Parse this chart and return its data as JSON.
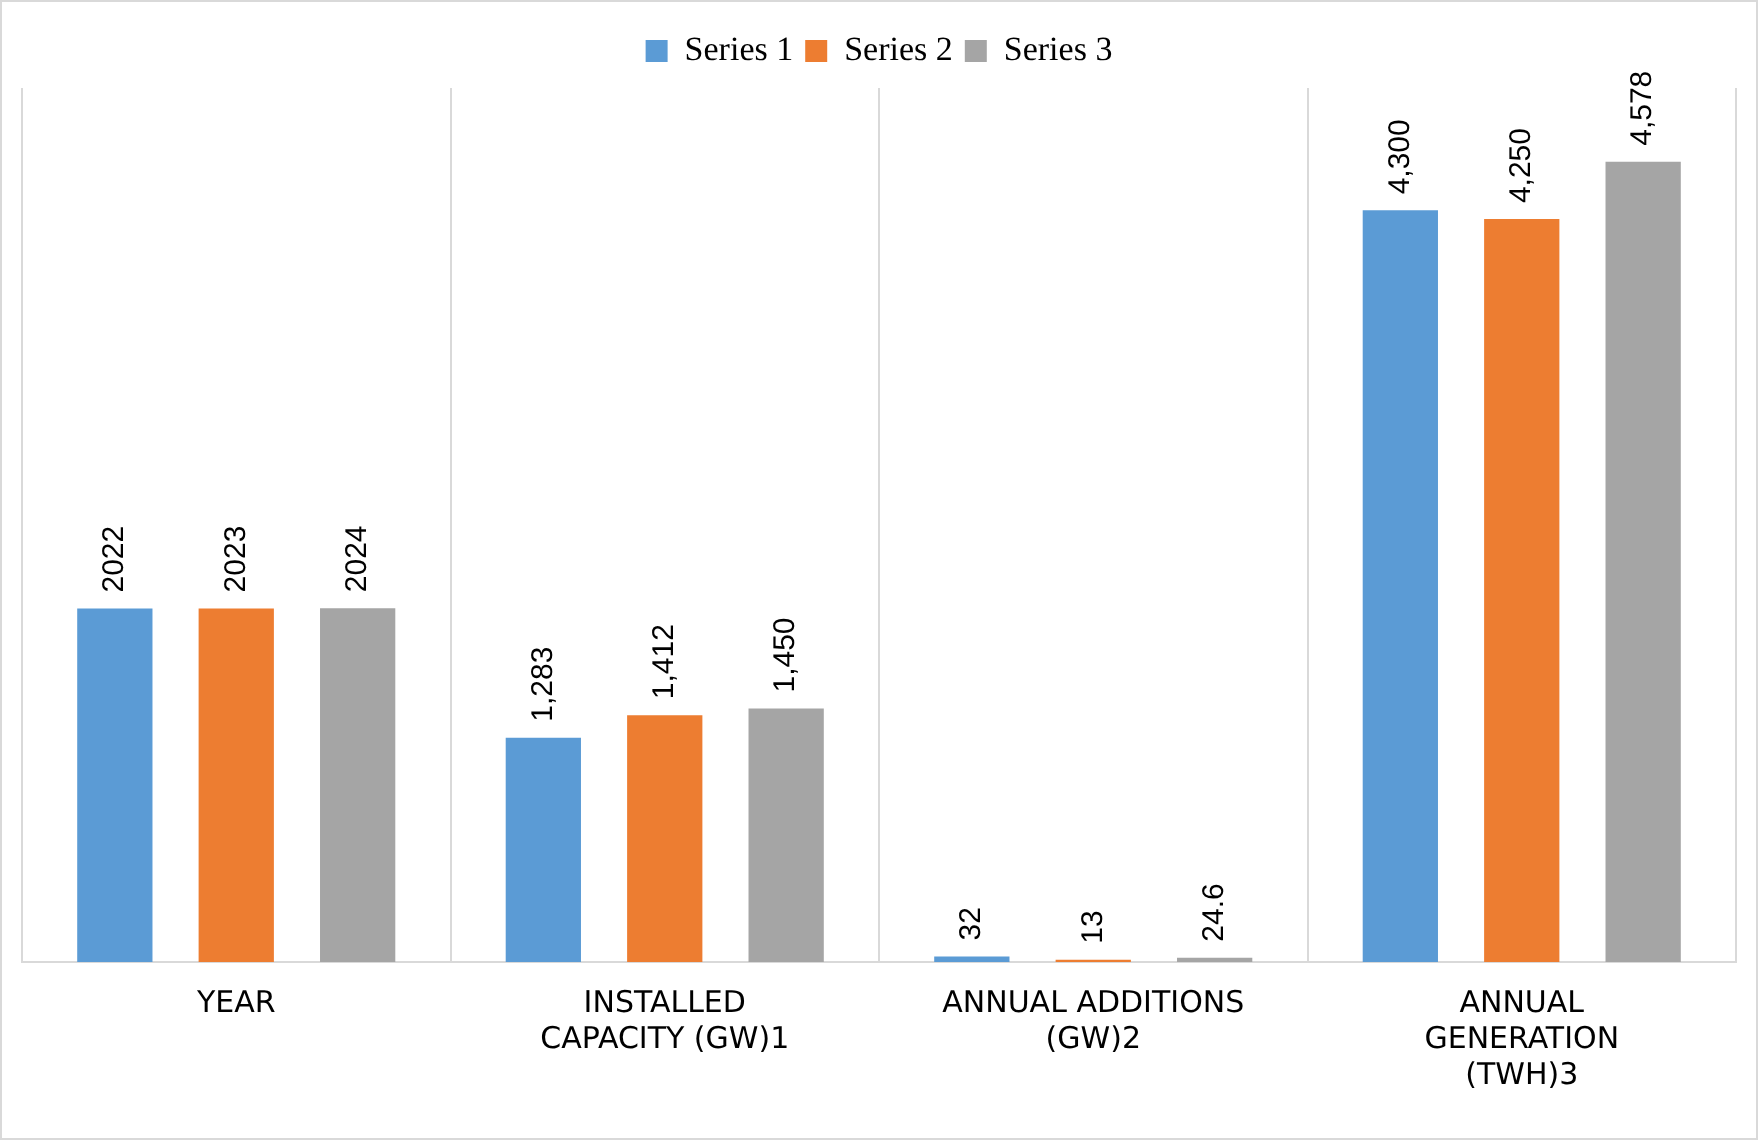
{
  "chart_data": {
    "type": "bar",
    "categories": [
      "YEAR",
      "INSTALLED CAPACITY (GW)1",
      "ANNUAL ADDITIONS (GW)2",
      "ANNUAL GENERATION (TWH)3"
    ],
    "series": [
      {
        "name": "Series 1",
        "color": "#5b9bd5",
        "values": [
          2022,
          1283,
          32,
          4300
        ],
        "value_labels": [
          "2022",
          "1,283",
          "32",
          "4,300"
        ]
      },
      {
        "name": "Series 2",
        "color": "#ed7d31",
        "values": [
          2023,
          1412,
          13,
          4250
        ],
        "value_labels": [
          "2023",
          "1,412",
          "13",
          "4,250"
        ]
      },
      {
        "name": "Series 3",
        "color": "#a5a5a5",
        "values": [
          2024,
          1450,
          24.6,
          4578
        ],
        "value_labels": [
          "2024",
          "1,450",
          "24.6",
          "4,578"
        ]
      }
    ],
    "ylim": [
      0,
      5000
    ],
    "grid": "x",
    "legend": "top"
  }
}
